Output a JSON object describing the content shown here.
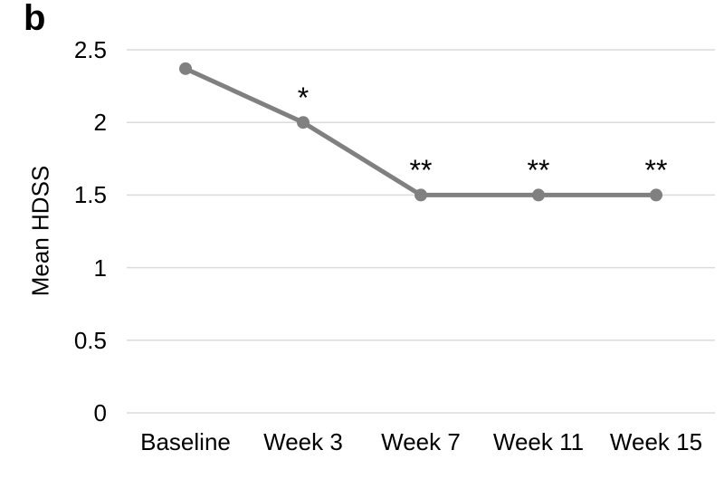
{
  "panel_label": "b",
  "chart_data": {
    "type": "line",
    "title": "",
    "xlabel": "",
    "ylabel": "Mean HDSS",
    "categories": [
      "Baseline",
      "Week 3",
      "Week 7",
      "Week 11",
      "Week 15"
    ],
    "values": [
      2.37,
      2.0,
      1.5,
      1.5,
      1.5
    ],
    "significance": [
      "",
      "*",
      "**",
      "**",
      "**"
    ],
    "ytick_labels": [
      "2.5",
      "2",
      "1.5",
      "1",
      "0.5",
      "0"
    ],
    "ytick_values": [
      2.5,
      2.0,
      1.5,
      1.0,
      0.5,
      0
    ],
    "ylim": [
      0,
      2.5
    ],
    "grid": true,
    "legend": "none",
    "line_color": "#808080",
    "marker_color": "#808080",
    "gridline_color": "#DBDBDB",
    "text_color": "#000000",
    "background": "#ffffff"
  }
}
